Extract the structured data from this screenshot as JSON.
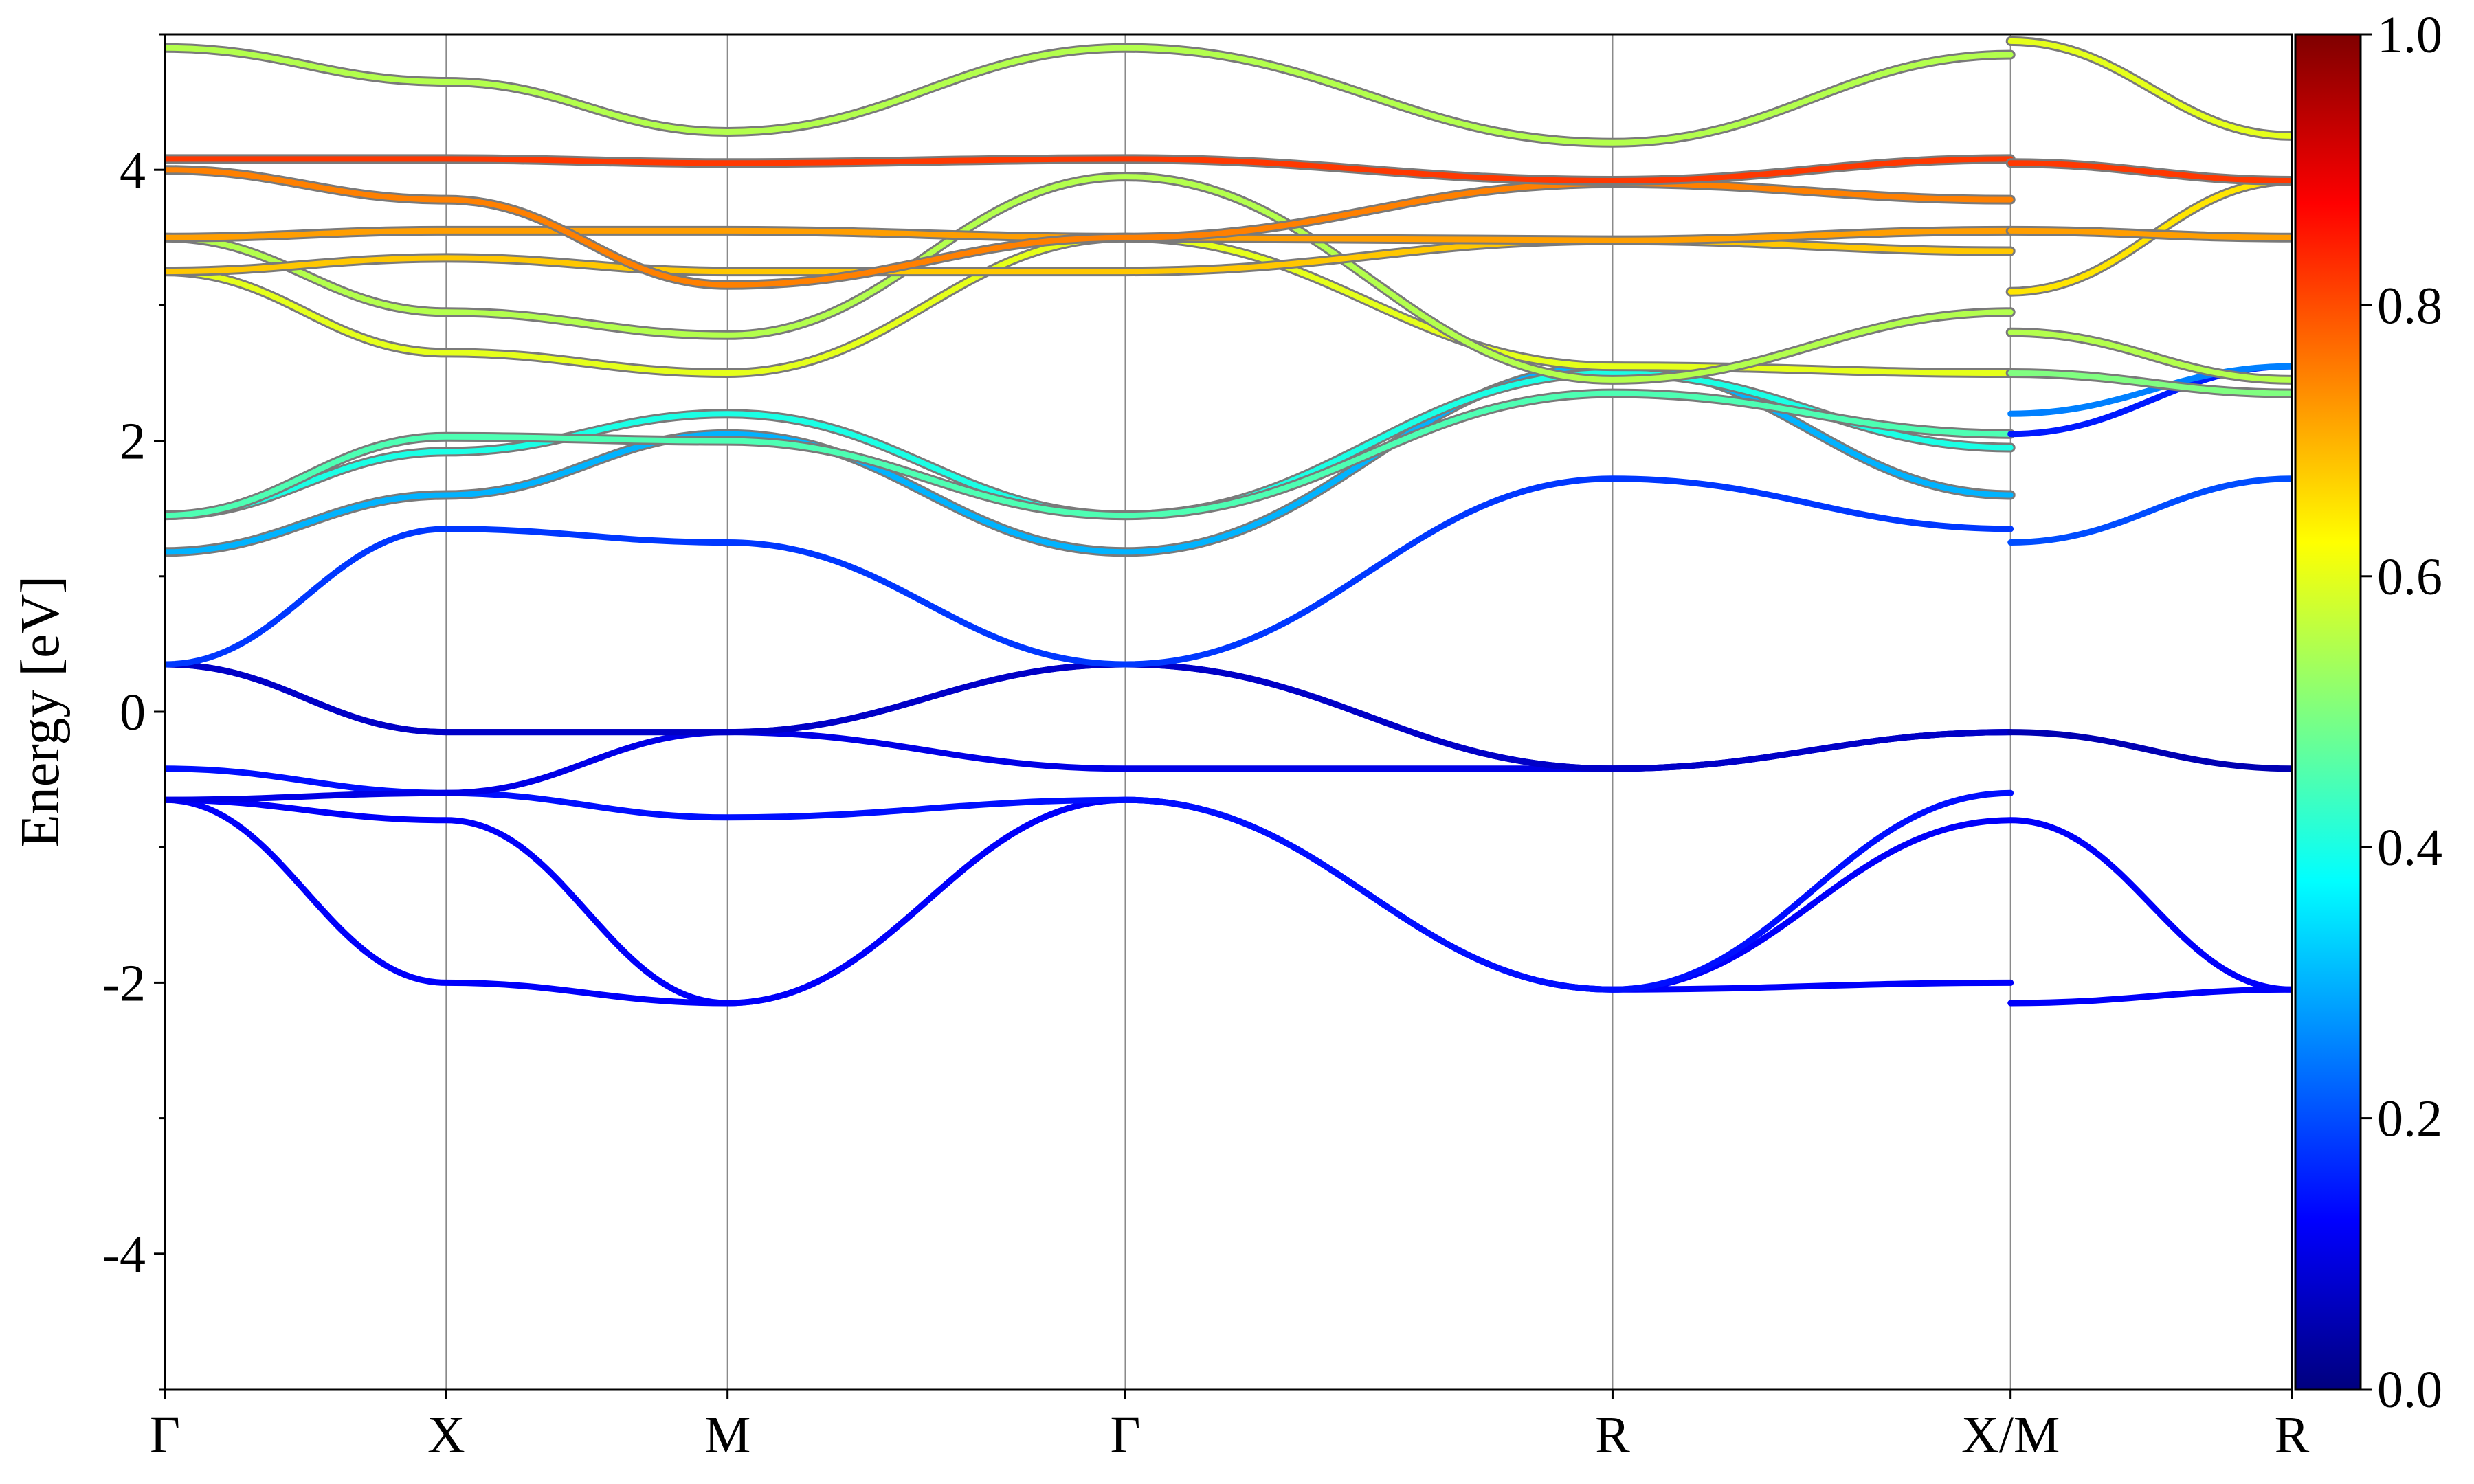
{
  "chart_data": {
    "type": "line",
    "title": "",
    "xlabel": "",
    "ylabel": "Energy [eV]",
    "ylim": [
      -5,
      5
    ],
    "yticks": [
      -4,
      -2,
      0,
      2,
      4
    ],
    "ytick_labels": [
      "-4",
      "-2",
      "0",
      "2",
      "4"
    ],
    "grid": false,
    "kpath": {
      "labels": [
        "Γ",
        "X",
        "M",
        "Γ",
        "R",
        "X/M",
        "R"
      ],
      "positions": [
        0,
        1,
        2,
        3.414,
        5.146,
        6.561,
        7.561
      ]
    },
    "colormap": "jet",
    "colorbar": {
      "range": [
        0,
        1
      ],
      "ticks": [
        0.0,
        0.2,
        0.4,
        0.6,
        0.8,
        1.0
      ],
      "tick_labels": [
        "0.0",
        "0.2",
        "0.4",
        "0.6",
        "0.8",
        "1.0"
      ]
    },
    "series": [
      {
        "x": [
          0,
          1,
          2,
          3.414,
          5.146,
          6.561
        ],
        "y": [
          -0.65,
          -2.0,
          -2.15,
          -0.65,
          -2.05,
          -2.0
        ],
        "weight": 0.12
      },
      {
        "x": [
          0,
          1,
          2,
          3.414,
          5.146,
          6.561
        ],
        "y": [
          -0.65,
          -0.8,
          -2.15,
          -0.65,
          -2.05,
          -0.8
        ],
        "weight": 0.12
      },
      {
        "x": [
          0,
          1,
          2,
          3.414,
          5.146,
          6.561
        ],
        "y": [
          -0.42,
          -0.6,
          -0.78,
          -0.65,
          -2.05,
          -0.6
        ],
        "weight": 0.14
      },
      {
        "x": [
          0,
          1,
          2,
          3.414,
          5.146,
          6.561
        ],
        "y": [
          -0.65,
          -0.6,
          -0.15,
          -0.42,
          -0.42,
          -0.15
        ],
        "weight": 0.1
      },
      {
        "x": [
          0,
          1,
          2,
          3.414,
          5.146,
          6.561
        ],
        "y": [
          0.35,
          -0.15,
          -0.15,
          0.35,
          -0.42,
          -0.15
        ],
        "weight": 0.05
      },
      {
        "x": [
          0,
          1,
          2,
          3.414,
          5.146,
          6.561
        ],
        "y": [
          0.35,
          -0.15,
          -0.15,
          0.35,
          -0.42,
          -0.15
        ],
        "weight": 0.07
      },
      {
        "x": [
          0,
          1,
          2,
          3.414,
          5.146,
          6.561
        ],
        "y": [
          0.35,
          1.35,
          1.25,
          0.35,
          1.72,
          1.35
        ],
        "weight": 0.18
      },
      {
        "x": [
          6.561,
          7.561
        ],
        "y": [
          -2.15,
          -2.05
        ],
        "weight": 0.12
      },
      {
        "x": [
          6.561,
          7.561
        ],
        "y": [
          -0.8,
          -2.05
        ],
        "weight": 0.12
      },
      {
        "x": [
          6.561,
          7.561
        ],
        "y": [
          -0.15,
          -0.42
        ],
        "weight": 0.05
      },
      {
        "x": [
          6.561,
          7.561
        ],
        "y": [
          1.25,
          1.72
        ],
        "weight": 0.2
      },
      {
        "x": [
          0,
          1,
          2,
          3.414,
          5.146,
          6.561
        ],
        "y": [
          1.18,
          1.6,
          2.05,
          1.18,
          2.55,
          1.6
        ],
        "weight": 0.3
      },
      {
        "x": [
          0,
          1,
          2,
          3.414,
          5.146,
          6.561
        ],
        "y": [
          1.45,
          1.92,
          2.2,
          1.45,
          2.5,
          1.95
        ],
        "weight": 0.4
      },
      {
        "x": [
          0,
          1,
          2,
          3.414,
          5.146,
          6.561
        ],
        "y": [
          1.45,
          2.03,
          2.0,
          1.45,
          2.35,
          2.05
        ],
        "weight": 0.45
      },
      {
        "x": [
          0,
          1,
          2,
          3.414,
          5.146,
          6.561
        ],
        "y": [
          3.25,
          2.65,
          2.5,
          3.5,
          2.55,
          2.5
        ],
        "weight": 0.6
      },
      {
        "x": [
          0,
          1,
          2,
          3.414,
          5.146,
          6.561
        ],
        "y": [
          3.5,
          2.95,
          2.78,
          3.95,
          2.45,
          2.95
        ],
        "weight": 0.55
      },
      {
        "x": [
          0,
          1,
          2,
          3.414,
          5.146,
          6.561
        ],
        "y": [
          3.25,
          3.35,
          3.25,
          3.25,
          3.48,
          3.4
        ],
        "weight": 0.68
      },
      {
        "x": [
          0,
          1,
          2,
          3.414,
          5.146,
          6.561
        ],
        "y": [
          3.5,
          3.55,
          3.55,
          3.5,
          3.48,
          3.55
        ],
        "weight": 0.72
      },
      {
        "x": [
          0,
          1,
          2,
          3.414,
          5.146,
          6.561
        ],
        "y": [
          4.0,
          3.78,
          3.15,
          3.5,
          3.9,
          3.78
        ],
        "weight": 0.75
      },
      {
        "x": [
          0,
          1,
          2,
          3.414,
          5.146,
          6.561
        ],
        "y": [
          4.08,
          4.08,
          4.05,
          4.08,
          3.92,
          4.08
        ],
        "weight": 0.82
      },
      {
        "x": [
          0,
          1,
          2,
          3.414,
          5.146,
          6.561
        ],
        "y": [
          4.9,
          4.65,
          4.28,
          4.9,
          4.2,
          4.85
        ],
        "weight": 0.55
      },
      {
        "x": [
          6.561,
          7.561
        ],
        "y": [
          2.05,
          2.55
        ],
        "weight": 0.15
      },
      {
        "x": [
          6.561,
          7.561
        ],
        "y": [
          2.2,
          2.55
        ],
        "weight": 0.25
      },
      {
        "x": [
          6.561,
          7.561
        ],
        "y": [
          2.5,
          2.35
        ],
        "weight": 0.5
      },
      {
        "x": [
          6.561,
          7.561
        ],
        "y": [
          2.8,
          2.45
        ],
        "weight": 0.55
      },
      {
        "x": [
          6.561,
          7.561
        ],
        "y": [
          3.1,
          3.92
        ],
        "weight": 0.65
      },
      {
        "x": [
          6.561,
          7.561
        ],
        "y": [
          3.55,
          3.5
        ],
        "weight": 0.72
      },
      {
        "x": [
          6.561,
          7.561
        ],
        "y": [
          4.05,
          3.92
        ],
        "weight": 0.82
      },
      {
        "x": [
          6.561,
          7.561
        ],
        "y": [
          4.95,
          4.25
        ],
        "weight": 0.6
      }
    ]
  }
}
